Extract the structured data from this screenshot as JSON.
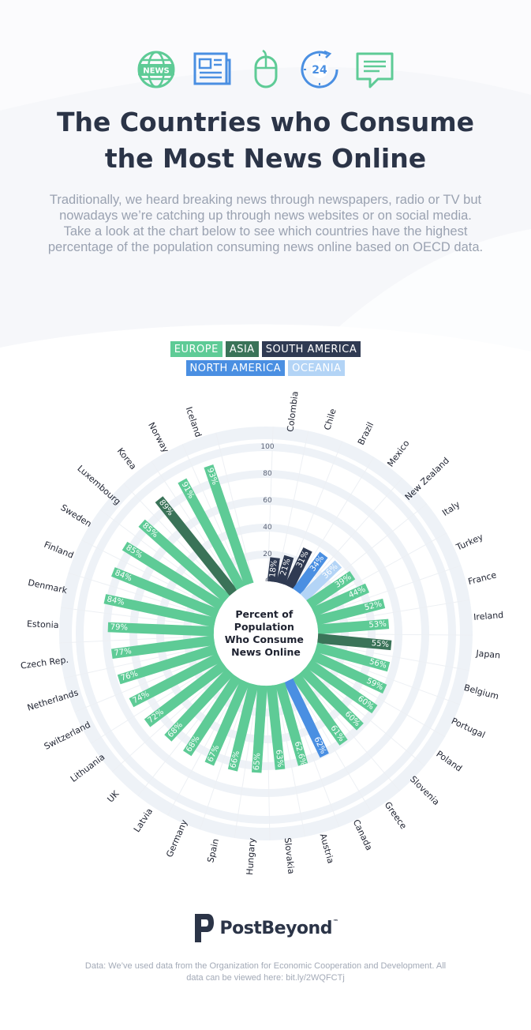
{
  "header": {
    "title_line1": "The Countries who Consume",
    "title_line2": "the Most News Online",
    "intro": "Traditionally, we heard breaking news through newspapers, radio or TV but nowadays we’re catching up through news websites or on social media. Take a look at the chart below to see which countries have the highest percentage of the population consuming news online based on OECD data.",
    "icons": [
      {
        "name": "news-globe-icon",
        "label": "NEWS"
      },
      {
        "name": "newspaper-icon"
      },
      {
        "name": "mouse-icon"
      },
      {
        "name": "clock-24-icon",
        "label": "24"
      },
      {
        "name": "chat-bubble-icon"
      }
    ]
  },
  "legend": [
    {
      "label": "EUROPE",
      "color": "#5ecb96"
    },
    {
      "label": "ASIA",
      "color": "#3a7358"
    },
    {
      "label": "SOUTH AMERICA",
      "color": "#2f3a52"
    },
    {
      "label": "NORTH AMERICA",
      "color": "#4a8fe2"
    },
    {
      "label": "OCEANIA",
      "color": "#b3d4f6"
    }
  ],
  "chart_data": {
    "type": "bar",
    "subtype": "radial",
    "center_label": [
      "Percent of",
      "Population",
      "Who Consume",
      "News Online"
    ],
    "ylim": [
      0,
      100
    ],
    "ticks": [
      "0",
      "20",
      "40",
      "60",
      "80",
      "100"
    ],
    "grid": true,
    "categories": [
      "Colombia",
      "Chile",
      "Brazil",
      "Mexico",
      "New Zealand",
      "Italy",
      "Turkey",
      "France",
      "Ireland",
      "Japan",
      "Belgium",
      "Portugal",
      "Poland",
      "Slovenia",
      "Greece",
      "Canada",
      "Austria",
      "Slovakia",
      "Hungary",
      "Spain",
      "Germany",
      "Latvia",
      "UK",
      "Lithuania",
      "Switzerland",
      "Netherlands",
      "Czech Rep.",
      "Estonia",
      "Denmark",
      "Finland",
      "Sweden",
      "Luxembourg",
      "Korea",
      "Norway",
      "Iceland"
    ],
    "values": [
      18,
      21,
      31,
      34,
      36,
      39,
      44,
      52,
      53,
      55,
      56,
      59,
      60,
      60,
      61,
      62,
      62.6,
      63,
      65,
      66,
      67,
      68,
      68,
      72,
      74,
      76,
      77,
      79,
      84,
      84,
      85,
      85,
      89,
      91,
      93
    ],
    "labels": [
      "18%",
      "21%",
      "31%",
      "34%",
      "36%",
      "39%",
      "44%",
      "52%",
      "53%",
      "55%",
      "56%",
      "59%",
      "60%",
      "60%",
      "61%",
      "62%",
      "62.6%",
      "63%",
      "65%",
      "66%",
      "67%",
      "68%",
      "68%",
      "72%",
      "74%",
      "76%",
      "77%",
      "79%",
      "84%",
      "84%",
      "85%",
      "85%",
      "89%",
      "91%",
      "93%"
    ],
    "regions": [
      "South America",
      "South America",
      "South America",
      "North America",
      "Oceania",
      "Europe",
      "Europe",
      "Europe",
      "Europe",
      "Asia",
      "Europe",
      "Europe",
      "Europe",
      "Europe",
      "Europe",
      "North America",
      "Europe",
      "Europe",
      "Europe",
      "Europe",
      "Europe",
      "Europe",
      "Europe",
      "Europe",
      "Europe",
      "Europe",
      "Europe",
      "Europe",
      "Europe",
      "Europe",
      "Europe",
      "Europe",
      "Asia",
      "Europe",
      "Europe"
    ]
  },
  "brand": {
    "name": "PostBeyond",
    "tm": "™"
  },
  "footnote": "Data: We’ve used data from the Organization for Economic Cooperation and Development. All data can be viewed here: bit.ly/2WQFCTj"
}
